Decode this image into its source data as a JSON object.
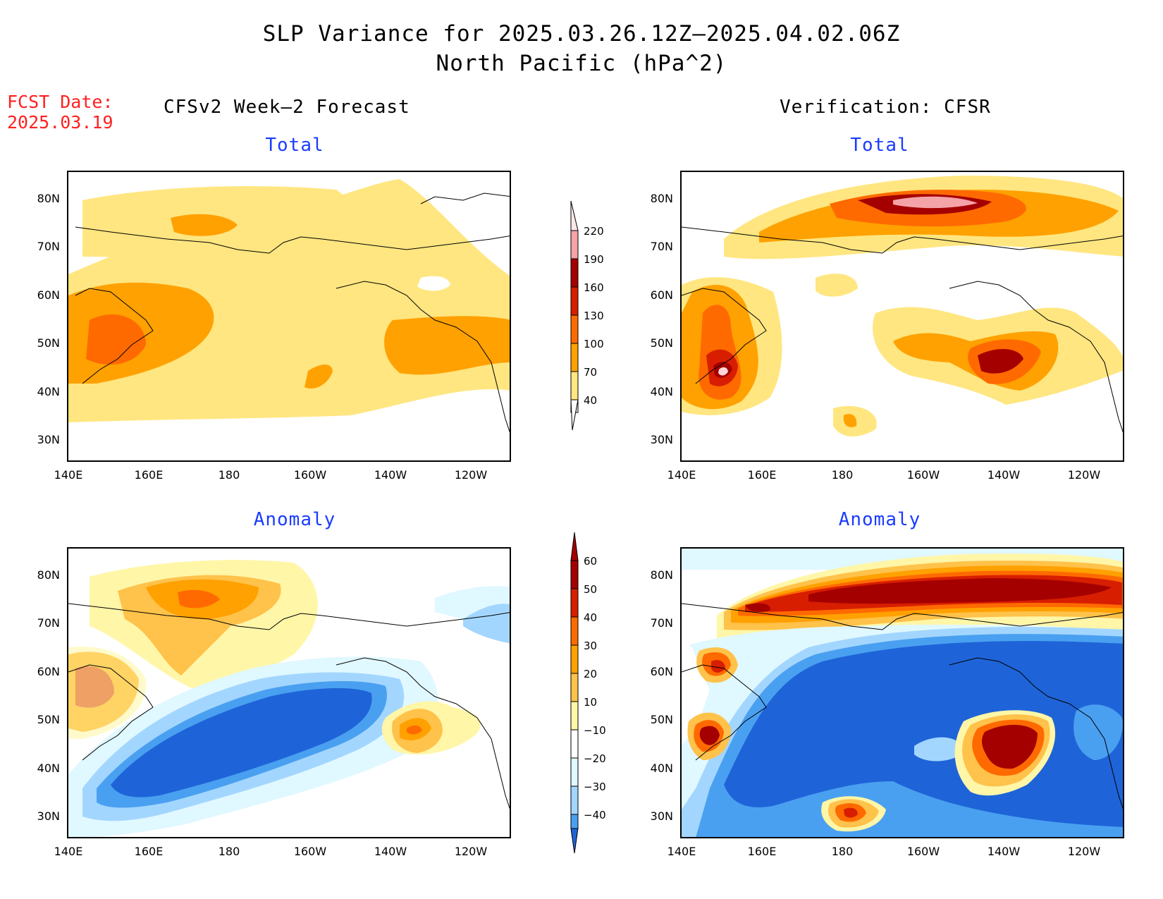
{
  "header": {
    "title_line1": "SLP Variance for 2025.03.26.12Z–2025.04.02.06Z",
    "title_line2": "North Pacific (hPa^2)",
    "fcst_label": "FCST Date:",
    "fcst_date": "2025.03.19"
  },
  "columns": {
    "left_title": "CFSv2 Week–2 Forecast",
    "right_title": "Verification: CFSR"
  },
  "panels": {
    "top_subtitle": "Total",
    "bottom_subtitle": "Anomaly"
  },
  "axes": {
    "lat_ticks": [
      "80N",
      "70N",
      "60N",
      "50N",
      "40N",
      "30N"
    ],
    "lon_ticks": [
      "140E",
      "160E",
      "180",
      "160W",
      "140W",
      "120W"
    ]
  },
  "colorbars": {
    "total": {
      "labels": [
        "220",
        "190",
        "160",
        "130",
        "100",
        "70",
        "40"
      ],
      "colors": [
        "#ffe8e8",
        "#f4a3a8",
        "#a50000",
        "#d81e00",
        "#ff6a00",
        "#ffa100",
        "#ffe680"
      ]
    },
    "anomaly": {
      "labels": [
        "60",
        "50",
        "40",
        "30",
        "20",
        "10",
        "−10",
        "−20",
        "−30",
        "−40"
      ],
      "colors": [
        "#a50000",
        "#d81e00",
        "#ff6a00",
        "#ffa100",
        "#ffc24a",
        "#fff6a8",
        "#ffffff",
        "#e0f8ff",
        "#a3d6ff",
        "#4aa0f0",
        "#1e64d8"
      ]
    }
  }
}
